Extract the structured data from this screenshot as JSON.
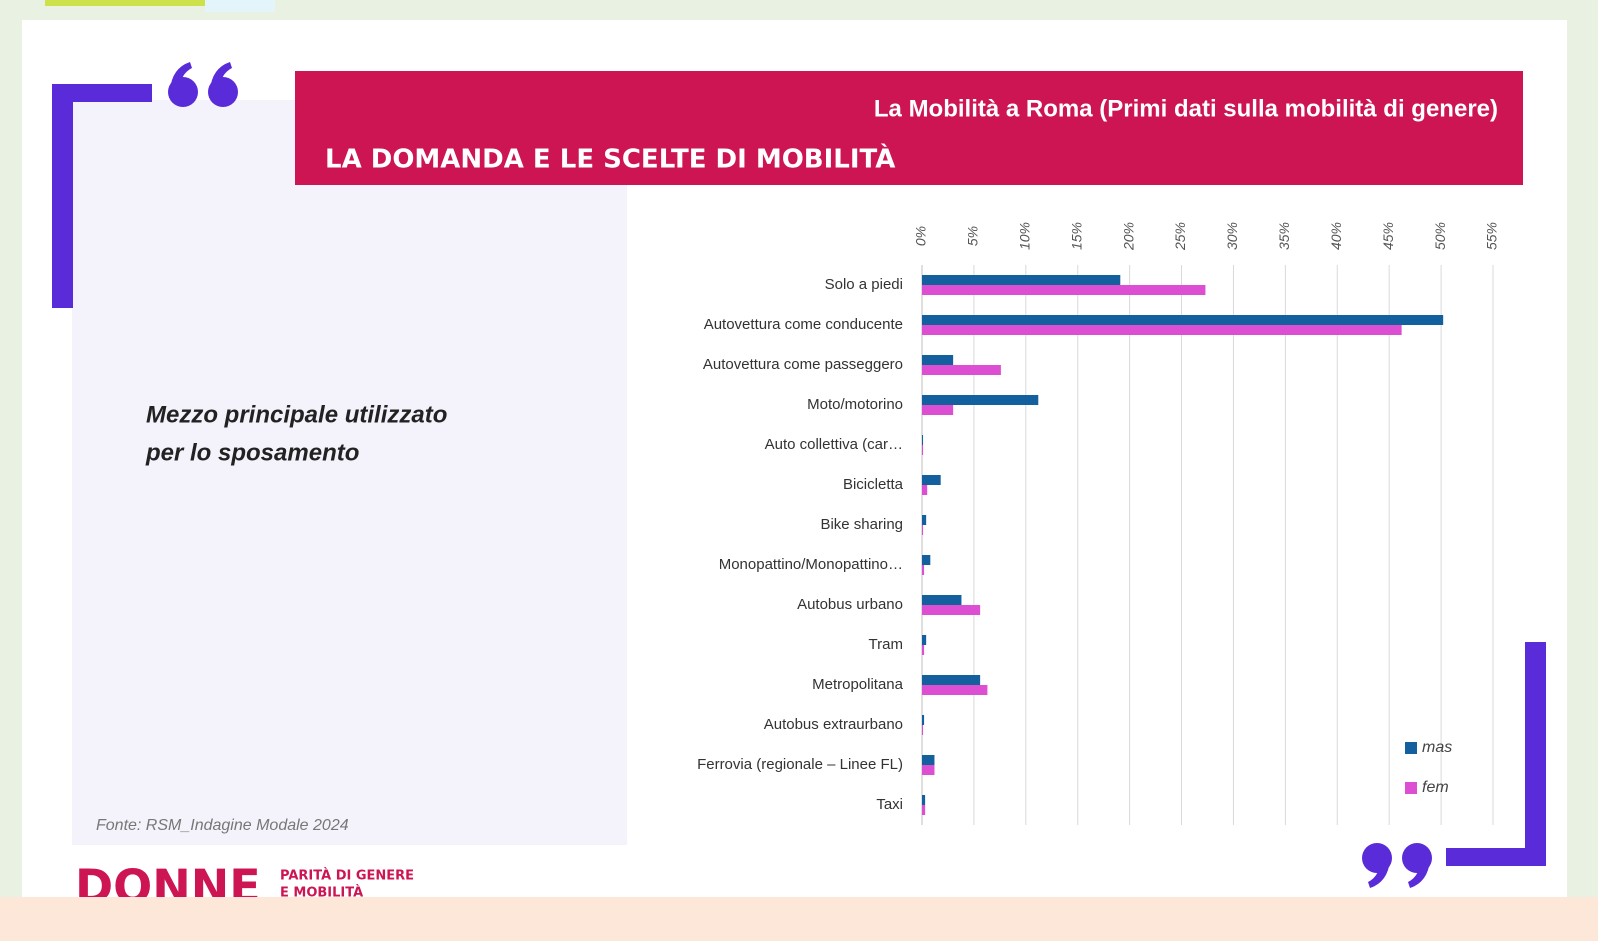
{
  "header": {
    "subtitle": "La Mobilità a Roma (Primi dati sulla mobilità di genere)",
    "title": "LA DOMANDA E LE SCELTE DI MOBILITÀ"
  },
  "side_text": [
    "Mezzo principale utilizzato",
    "per lo sposamento"
  ],
  "source": "Fonte: RSM_Indagine Modale 2024",
  "logo": {
    "name": "DONNE",
    "tagline": [
      "PARITÀ DI GENERE",
      "E MOBILITÀ"
    ]
  },
  "chart_data": {
    "type": "hbar",
    "categories": [
      "Solo a piedi",
      "Autovettura come conducente",
      "Autovettura come passeggero",
      "Moto/motorino",
      "Auto collettiva (car…",
      "Bicicletta",
      "Bike sharing",
      "Monopattino/Monopattino…",
      "Autobus urbano",
      "Tram",
      "Metropolitana",
      "Autobus extraurbano",
      "Ferrovia (regionale – Linee FL)",
      "Taxi"
    ],
    "series": [
      {
        "name": "mas",
        "color": "#14609f",
        "values": [
          19.1,
          50.2,
          3.0,
          11.2,
          0.1,
          1.8,
          0.4,
          0.8,
          3.8,
          0.4,
          5.6,
          0.2,
          1.2,
          0.3
        ]
      },
      {
        "name": "fem",
        "color": "#dc4fd3",
        "values": [
          27.3,
          46.2,
          7.6,
          3.0,
          0.1,
          0.5,
          0.1,
          0.2,
          5.6,
          0.2,
          6.3,
          0.1,
          1.2,
          0.3
        ]
      }
    ],
    "xlim": [
      0,
      55
    ],
    "xticks": [
      {
        "value": 0,
        "label": "0%"
      },
      {
        "value": 5,
        "label": "5%"
      },
      {
        "value": 10,
        "label": "10%"
      },
      {
        "value": 15,
        "label": "15%"
      },
      {
        "value": 20,
        "label": "20%"
      },
      {
        "value": 25,
        "label": "25%"
      },
      {
        "value": 30,
        "label": "30%"
      },
      {
        "value": 35,
        "label": "35%"
      },
      {
        "value": 40,
        "label": "40%"
      },
      {
        "value": 45,
        "label": "45%"
      },
      {
        "value": 50,
        "label": "50%"
      },
      {
        "value": 55,
        "label": "55%"
      }
    ],
    "grid": true,
    "legend": "lower right"
  }
}
